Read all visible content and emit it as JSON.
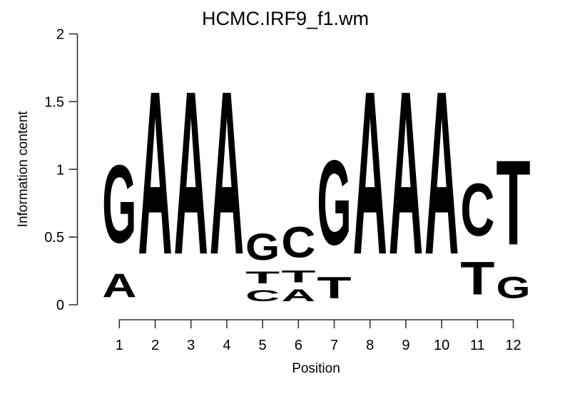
{
  "chart_data": {
    "type": "bar",
    "variant": "sequence_logo",
    "title": "HCMC.IRF9_f1.wm",
    "xlabel": "Position",
    "ylabel": "Information content",
    "ylim": [
      0,
      2
    ],
    "yticks": [
      0,
      0.5,
      1,
      1.5,
      2
    ],
    "ytick_labels": [
      "0",
      "0.5",
      "1",
      "1.5",
      "2"
    ],
    "positions": [
      "1",
      "2",
      "3",
      "4",
      "5",
      "6",
      "7",
      "8",
      "9",
      "10",
      "11",
      "12"
    ],
    "colors": {
      "A": "#00D71C",
      "C": "#1E1ED2",
      "G": "#FFA500",
      "T": "#FF0000"
    },
    "stacks": [
      [
        {
          "base": "A",
          "ic": 0.28
        },
        {
          "base": "G",
          "ic": 0.92
        }
      ],
      [
        {
          "base": "A",
          "ic": 1.93
        }
      ],
      [
        {
          "base": "A",
          "ic": 1.93
        }
      ],
      [
        {
          "base": "A",
          "ic": 1.93
        }
      ],
      [
        {
          "base": "C",
          "ic": 0.13
        },
        {
          "base": "T",
          "ic": 0.14
        },
        {
          "base": "G",
          "ic": 0.31
        }
      ],
      [
        {
          "base": "A",
          "ic": 0.14
        },
        {
          "base": "T",
          "ic": 0.14
        },
        {
          "base": "C",
          "ic": 0.36
        }
      ],
      [
        {
          "base": "T",
          "ic": 0.25
        },
        {
          "base": "G",
          "ic": 1.0
        }
      ],
      [
        {
          "base": "A",
          "ic": 1.93
        }
      ],
      [
        {
          "base": "A",
          "ic": 1.93
        }
      ],
      [
        {
          "base": "A",
          "ic": 1.93
        }
      ],
      [
        {
          "base": "T",
          "ic": 0.39
        },
        {
          "base": "C",
          "ic": 0.62
        }
      ],
      [
        {
          "base": "G",
          "ic": 0.25
        },
        {
          "base": "T",
          "ic": 1.0
        }
      ]
    ],
    "legend": null,
    "grid": false
  }
}
